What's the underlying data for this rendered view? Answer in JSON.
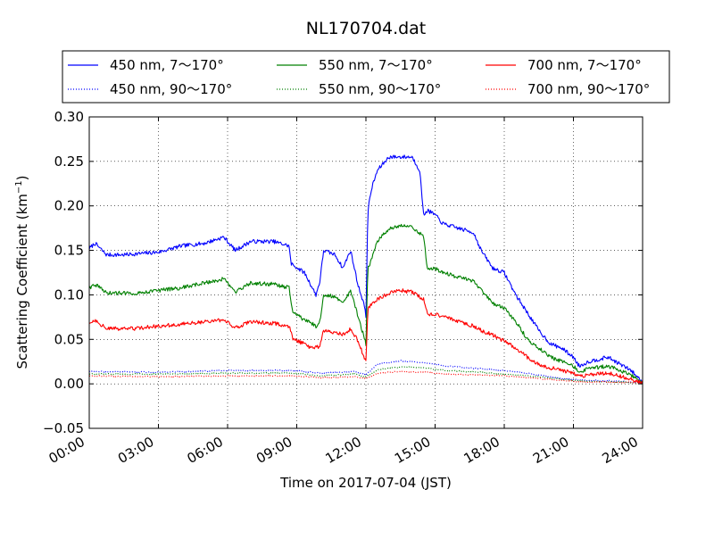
{
  "chart_data": {
    "type": "line",
    "title": "NL170704.dat",
    "xlabel": "Time on 2017-07-04 (JST)",
    "ylabel_main": "Scattering Coefficient (km",
    "ylabel_exp": "−1",
    "ylabel_close": ")",
    "xlim": [
      "00:00",
      "24:00"
    ],
    "ylim": [
      -0.05,
      0.3
    ],
    "x_ticks": [
      "00:00",
      "03:00",
      "06:00",
      "09:00",
      "12:00",
      "15:00",
      "18:00",
      "21:00",
      "24:00"
    ],
    "y_ticks": [
      "−0.05",
      "0.00",
      "0.05",
      "0.10",
      "0.15",
      "0.20",
      "0.25",
      "0.30"
    ],
    "y_tick_values": [
      -0.05,
      0.0,
      0.05,
      0.1,
      0.15,
      0.2,
      0.25,
      0.3
    ],
    "grid": true,
    "legend_position": "top",
    "series": [
      {
        "name": "450 nm, 7～170°",
        "color": "#0000ff",
        "style": "solid",
        "points": [
          [
            "00:00",
            0.152
          ],
          [
            "00:15",
            0.158
          ],
          [
            "00:45",
            0.145
          ],
          [
            "01:30",
            0.145
          ],
          [
            "02:00",
            0.146
          ],
          [
            "03:00",
            0.148
          ],
          [
            "04:00",
            0.155
          ],
          [
            "05:00",
            0.158
          ],
          [
            "05:50",
            0.165
          ],
          [
            "06:20",
            0.15
          ],
          [
            "07:00",
            0.16
          ],
          [
            "08:00",
            0.16
          ],
          [
            "08:40",
            0.155
          ],
          [
            "08:45",
            0.135
          ],
          [
            "09:20",
            0.125
          ],
          [
            "09:50",
            0.1
          ],
          [
            "10:00",
            0.115
          ],
          [
            "10:10",
            0.15
          ],
          [
            "10:40",
            0.145
          ],
          [
            "11:00",
            0.13
          ],
          [
            "11:20",
            0.15
          ],
          [
            "11:40",
            0.11
          ],
          [
            "11:55",
            0.09
          ],
          [
            "12:00",
            0.075
          ],
          [
            "12:05",
            0.195
          ],
          [
            "12:15",
            0.22
          ],
          [
            "12:30",
            0.24
          ],
          [
            "13:00",
            0.255
          ],
          [
            "13:30",
            0.255
          ],
          [
            "14:00",
            0.255
          ],
          [
            "14:20",
            0.24
          ],
          [
            "14:30",
            0.19
          ],
          [
            "14:40",
            0.195
          ],
          [
            "15:00",
            0.19
          ],
          [
            "15:20",
            0.18
          ],
          [
            "16:00",
            0.175
          ],
          [
            "16:40",
            0.17
          ],
          [
            "17:00",
            0.15
          ],
          [
            "17:30",
            0.13
          ],
          [
            "18:00",
            0.125
          ],
          [
            "18:30",
            0.1
          ],
          [
            "19:00",
            0.08
          ],
          [
            "19:30",
            0.06
          ],
          [
            "20:00",
            0.045
          ],
          [
            "20:30",
            0.04
          ],
          [
            "21:00",
            0.03
          ],
          [
            "21:15",
            0.02
          ],
          [
            "21:40",
            0.025
          ],
          [
            "22:30",
            0.03
          ],
          [
            "23:30",
            0.015
          ],
          [
            "24:00",
            0.002
          ]
        ]
      },
      {
        "name": "450 nm, 90～170°",
        "color": "#0000ff",
        "style": "dotted",
        "points": [
          [
            "00:00",
            0.014
          ],
          [
            "03:00",
            0.013
          ],
          [
            "06:00",
            0.015
          ],
          [
            "09:00",
            0.015
          ],
          [
            "10:00",
            0.012
          ],
          [
            "11:30",
            0.014
          ],
          [
            "12:00",
            0.01
          ],
          [
            "12:30",
            0.022
          ],
          [
            "13:30",
            0.026
          ],
          [
            "14:30",
            0.024
          ],
          [
            "15:30",
            0.02
          ],
          [
            "17:00",
            0.017
          ],
          [
            "18:00",
            0.015
          ],
          [
            "19:30",
            0.01
          ],
          [
            "20:30",
            0.006
          ],
          [
            "21:30",
            0.004
          ],
          [
            "23:00",
            0.003
          ],
          [
            "24:00",
            0.001
          ]
        ]
      },
      {
        "name": "550 nm, 7～170°",
        "color": "#008000",
        "style": "solid",
        "points": [
          [
            "00:00",
            0.108
          ],
          [
            "00:15",
            0.112
          ],
          [
            "00:45",
            0.102
          ],
          [
            "02:00",
            0.102
          ],
          [
            "03:00",
            0.105
          ],
          [
            "04:00",
            0.108
          ],
          [
            "05:50",
            0.118
          ],
          [
            "06:20",
            0.103
          ],
          [
            "07:00",
            0.113
          ],
          [
            "08:00",
            0.112
          ],
          [
            "08:40",
            0.108
          ],
          [
            "08:50",
            0.08
          ],
          [
            "09:20",
            0.072
          ],
          [
            "09:50",
            0.065
          ],
          [
            "10:00",
            0.07
          ],
          [
            "10:10",
            0.1
          ],
          [
            "10:40",
            0.098
          ],
          [
            "11:00",
            0.09
          ],
          [
            "11:20",
            0.105
          ],
          [
            "11:40",
            0.075
          ],
          [
            "12:00",
            0.045
          ],
          [
            "12:05",
            0.13
          ],
          [
            "12:15",
            0.14
          ],
          [
            "12:30",
            0.16
          ],
          [
            "13:00",
            0.175
          ],
          [
            "13:30",
            0.178
          ],
          [
            "14:00",
            0.177
          ],
          [
            "14:30",
            0.165
          ],
          [
            "14:40",
            0.13
          ],
          [
            "15:00",
            0.13
          ],
          [
            "15:20",
            0.125
          ],
          [
            "16:00",
            0.12
          ],
          [
            "16:40",
            0.115
          ],
          [
            "17:00",
            0.105
          ],
          [
            "17:30",
            0.09
          ],
          [
            "18:00",
            0.085
          ],
          [
            "18:30",
            0.07
          ],
          [
            "19:00",
            0.05
          ],
          [
            "19:30",
            0.04
          ],
          [
            "20:00",
            0.03
          ],
          [
            "21:00",
            0.02
          ],
          [
            "21:15",
            0.013
          ],
          [
            "21:40",
            0.017
          ],
          [
            "22:30",
            0.02
          ],
          [
            "23:30",
            0.01
          ],
          [
            "24:00",
            0.001
          ]
        ]
      },
      {
        "name": "550 nm, 90～170°",
        "color": "#008000",
        "style": "dotted",
        "points": [
          [
            "00:00",
            0.011
          ],
          [
            "03:00",
            0.011
          ],
          [
            "06:00",
            0.012
          ],
          [
            "09:00",
            0.012
          ],
          [
            "10:00",
            0.009
          ],
          [
            "11:30",
            0.011
          ],
          [
            "12:00",
            0.008
          ],
          [
            "12:30",
            0.016
          ],
          [
            "13:30",
            0.019
          ],
          [
            "14:30",
            0.018
          ],
          [
            "15:30",
            0.015
          ],
          [
            "17:00",
            0.013
          ],
          [
            "18:00",
            0.011
          ],
          [
            "19:30",
            0.008
          ],
          [
            "20:30",
            0.005
          ],
          [
            "21:30",
            0.003
          ],
          [
            "23:00",
            0.002
          ],
          [
            "24:00",
            0.001
          ]
        ]
      },
      {
        "name": "700 nm, 7～170°",
        "color": "#ff0000",
        "style": "solid",
        "points": [
          [
            "00:00",
            0.068
          ],
          [
            "00:15",
            0.072
          ],
          [
            "00:45",
            0.062
          ],
          [
            "02:00",
            0.062
          ],
          [
            "03:00",
            0.065
          ],
          [
            "04:00",
            0.067
          ],
          [
            "05:50",
            0.072
          ],
          [
            "06:20",
            0.063
          ],
          [
            "07:00",
            0.07
          ],
          [
            "08:00",
            0.068
          ],
          [
            "08:40",
            0.065
          ],
          [
            "08:50",
            0.05
          ],
          [
            "09:20",
            0.045
          ],
          [
            "09:40",
            0.04
          ],
          [
            "10:00",
            0.042
          ],
          [
            "10:10",
            0.06
          ],
          [
            "10:40",
            0.058
          ],
          [
            "11:00",
            0.055
          ],
          [
            "11:20",
            0.062
          ],
          [
            "11:40",
            0.048
          ],
          [
            "11:55",
            0.03
          ],
          [
            "12:00",
            0.025
          ],
          [
            "12:05",
            0.085
          ],
          [
            "12:30",
            0.095
          ],
          [
            "13:00",
            0.102
          ],
          [
            "13:30",
            0.105
          ],
          [
            "14:00",
            0.103
          ],
          [
            "14:30",
            0.095
          ],
          [
            "14:40",
            0.078
          ],
          [
            "15:00",
            0.078
          ],
          [
            "15:30",
            0.075
          ],
          [
            "16:00",
            0.07
          ],
          [
            "16:40",
            0.065
          ],
          [
            "17:00",
            0.06
          ],
          [
            "17:30",
            0.055
          ],
          [
            "18:00",
            0.048
          ],
          [
            "18:30",
            0.04
          ],
          [
            "19:00",
            0.03
          ],
          [
            "19:30",
            0.022
          ],
          [
            "20:00",
            0.018
          ],
          [
            "21:00",
            0.012
          ],
          [
            "21:15",
            0.008
          ],
          [
            "21:40",
            0.01
          ],
          [
            "22:30",
            0.012
          ],
          [
            "23:30",
            0.005
          ],
          [
            "24:00",
            0.001
          ]
        ]
      },
      {
        "name": "700 nm, 90～170°",
        "color": "#ff0000",
        "style": "dotted",
        "points": [
          [
            "00:00",
            0.009
          ],
          [
            "03:00",
            0.008
          ],
          [
            "06:00",
            0.009
          ],
          [
            "09:00",
            0.009
          ],
          [
            "10:00",
            0.007
          ],
          [
            "11:30",
            0.008
          ],
          [
            "12:00",
            0.006
          ],
          [
            "12:30",
            0.012
          ],
          [
            "13:30",
            0.014
          ],
          [
            "14:30",
            0.013
          ],
          [
            "15:30",
            0.011
          ],
          [
            "17:00",
            0.01
          ],
          [
            "18:00",
            0.009
          ],
          [
            "19:30",
            0.006
          ],
          [
            "20:30",
            0.004
          ],
          [
            "21:30",
            0.002
          ],
          [
            "23:00",
            0.002
          ],
          [
            "24:00",
            0.001
          ]
        ]
      }
    ]
  }
}
